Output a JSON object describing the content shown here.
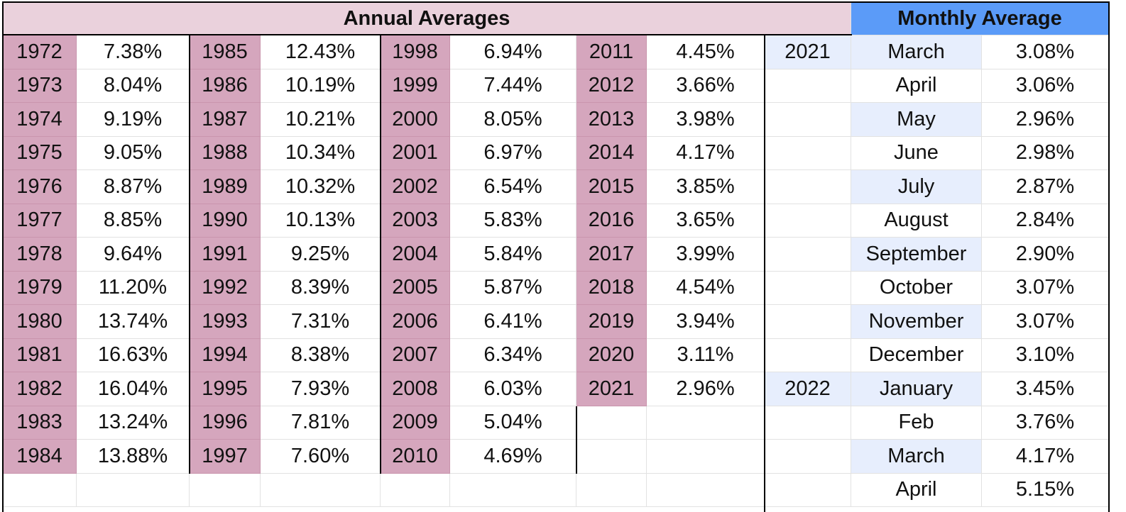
{
  "header": {
    "annual_title": "Annual Averages",
    "monthly_title": "Monthly Average"
  },
  "colors": {
    "annual_header_bg": "#ead1dc",
    "year_cell_bg": "#d5a6bd",
    "monthly_header_bg": "#5b9bf8",
    "month_cell_bg": "#e7eefd"
  },
  "annual": [
    [
      {
        "year": "1972",
        "rate": "7.38%"
      },
      {
        "year": "1973",
        "rate": "8.04%"
      },
      {
        "year": "1974",
        "rate": "9.19%"
      },
      {
        "year": "1975",
        "rate": "9.05%"
      },
      {
        "year": "1976",
        "rate": "8.87%"
      },
      {
        "year": "1977",
        "rate": "8.85%"
      },
      {
        "year": "1978",
        "rate": "9.64%"
      },
      {
        "year": "1979",
        "rate": "11.20%"
      },
      {
        "year": "1980",
        "rate": "13.74%"
      },
      {
        "year": "1981",
        "rate": "16.63%"
      },
      {
        "year": "1982",
        "rate": "16.04%"
      },
      {
        "year": "1983",
        "rate": "13.24%"
      },
      {
        "year": "1984",
        "rate": "13.88%"
      }
    ],
    [
      {
        "year": "1985",
        "rate": "12.43%"
      },
      {
        "year": "1986",
        "rate": "10.19%"
      },
      {
        "year": "1987",
        "rate": "10.21%"
      },
      {
        "year": "1988",
        "rate": "10.34%"
      },
      {
        "year": "1989",
        "rate": "10.32%"
      },
      {
        "year": "1990",
        "rate": "10.13%"
      },
      {
        "year": "1991",
        "rate": "9.25%"
      },
      {
        "year": "1992",
        "rate": "8.39%"
      },
      {
        "year": "1993",
        "rate": "7.31%"
      },
      {
        "year": "1994",
        "rate": "8.38%"
      },
      {
        "year": "1995",
        "rate": "7.93%"
      },
      {
        "year": "1996",
        "rate": "7.81%"
      },
      {
        "year": "1997",
        "rate": "7.60%"
      }
    ],
    [
      {
        "year": "1998",
        "rate": "6.94%"
      },
      {
        "year": "1999",
        "rate": "7.44%"
      },
      {
        "year": "2000",
        "rate": "8.05%"
      },
      {
        "year": "2001",
        "rate": "6.97%"
      },
      {
        "year": "2002",
        "rate": "6.54%"
      },
      {
        "year": "2003",
        "rate": "5.83%"
      },
      {
        "year": "2004",
        "rate": "5.84%"
      },
      {
        "year": "2005",
        "rate": "5.87%"
      },
      {
        "year": "2006",
        "rate": "6.41%"
      },
      {
        "year": "2007",
        "rate": "6.34%"
      },
      {
        "year": "2008",
        "rate": "6.03%"
      },
      {
        "year": "2009",
        "rate": "5.04%"
      },
      {
        "year": "2010",
        "rate": "4.69%"
      }
    ],
    [
      {
        "year": "2011",
        "rate": "4.45%"
      },
      {
        "year": "2012",
        "rate": "3.66%"
      },
      {
        "year": "2013",
        "rate": "3.98%"
      },
      {
        "year": "2014",
        "rate": "4.17%"
      },
      {
        "year": "2015",
        "rate": "3.85%"
      },
      {
        "year": "2016",
        "rate": "3.65%"
      },
      {
        "year": "2017",
        "rate": "3.99%"
      },
      {
        "year": "2018",
        "rate": "4.54%"
      },
      {
        "year": "2019",
        "rate": "3.94%"
      },
      {
        "year": "2020",
        "rate": "3.11%"
      },
      {
        "year": "2021",
        "rate": "2.96%"
      }
    ]
  ],
  "monthly": [
    {
      "year": "2021",
      "month": "March",
      "rate": "3.08%"
    },
    {
      "year": "",
      "month": "April",
      "rate": "3.06%"
    },
    {
      "year": "",
      "month": "May",
      "rate": "2.96%"
    },
    {
      "year": "",
      "month": "June",
      "rate": "2.98%"
    },
    {
      "year": "",
      "month": "July",
      "rate": "2.87%"
    },
    {
      "year": "",
      "month": "August",
      "rate": "2.84%"
    },
    {
      "year": "",
      "month": "September",
      "rate": "2.90%"
    },
    {
      "year": "",
      "month": "October",
      "rate": "3.07%"
    },
    {
      "year": "",
      "month": "November",
      "rate": "3.07%"
    },
    {
      "year": "",
      "month": "December",
      "rate": "3.10%"
    },
    {
      "year": "2022",
      "month": "January",
      "rate": "3.45%"
    },
    {
      "year": "",
      "month": "Feb",
      "rate": "3.76%"
    },
    {
      "year": "",
      "month": "March",
      "rate": "4.17%"
    },
    {
      "year": "",
      "month": "April",
      "rate": "5.15%"
    }
  ]
}
